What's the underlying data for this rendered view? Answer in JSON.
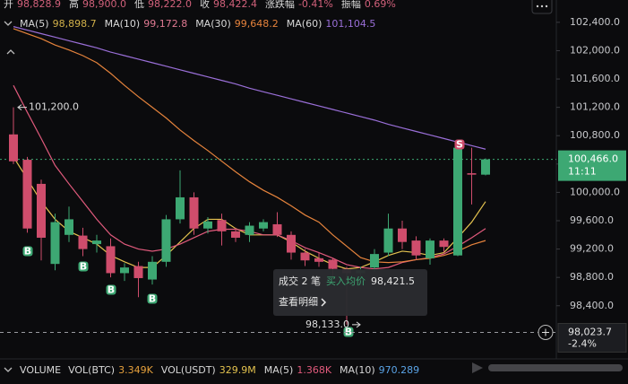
{
  "chart_data": {
    "type": "candlestick",
    "header": [
      {
        "label": "开",
        "value": "98,828.9"
      },
      {
        "label": "高",
        "value": "98,900.0"
      },
      {
        "label": "低",
        "value": "98,222.0"
      },
      {
        "label": "收",
        "value": "98,422.4"
      },
      {
        "label": "涨跌幅",
        "value": "-0.41%"
      },
      {
        "label": "振幅",
        "value": "0.69%"
      }
    ],
    "candles": {
      "up_color": "#3da873",
      "down_color": "#cf4d6c",
      "open": [
        100818,
        100460,
        100120,
        98990,
        99400,
        99390,
        99270,
        99240,
        98860,
        98960,
        98770,
        99020,
        99620,
        99930,
        99490,
        99610,
        99450,
        99400,
        99490,
        99550,
        99400,
        99150,
        99070,
        99050,
        98920,
        98860,
        98940,
        99150,
        99490,
        99320,
        99070,
        99320,
        99110,
        100270,
        100250
      ],
      "high": [
        101200,
        100500,
        100180,
        99700,
        99800,
        99500,
        99400,
        99350,
        99000,
        99020,
        99100,
        99680,
        100310,
        100000,
        99650,
        99700,
        99500,
        99580,
        99620,
        99720,
        99450,
        99200,
        99150,
        99080,
        98950,
        98950,
        99200,
        99700,
        99600,
        99380,
        99350,
        99350,
        100700,
        100630,
        100480
      ],
      "low": [
        100400,
        99430,
        99040,
        98900,
        99300,
        99100,
        99150,
        98800,
        98750,
        98520,
        98700,
        98950,
        99560,
        99400,
        99420,
        99250,
        99300,
        99300,
        99450,
        99370,
        99050,
        98960,
        98950,
        98800,
        98133,
        98800,
        98880,
        99100,
        99200,
        99050,
        98980,
        99150,
        99100,
        99830,
        100240
      ],
      "close": [
        100438,
        99490,
        99360,
        99580,
        99620,
        99200,
        99320,
        98860,
        98940,
        98790,
        99020,
        99620,
        99930,
        99490,
        99590,
        99450,
        99360,
        99530,
        99580,
        99400,
        99150,
        99040,
        99020,
        98920,
        98860,
        98900,
        99130,
        99490,
        99300,
        99110,
        99320,
        99230,
        100630,
        100250,
        100466
      ]
    },
    "series": [
      {
        "name": "MA(5)",
        "value_label": "98,898.7",
        "color": "#e3c24f",
        "label_color": "#d1b04a",
        "values": [
          100500,
          100190,
          99870,
          99620,
          99450,
          99360,
          99270,
          99110,
          99020,
          98940,
          98940,
          99110,
          99300,
          99490,
          99620,
          99620,
          99490,
          99400,
          99400,
          99400,
          99300,
          99170,
          99070,
          98980,
          98920,
          98940,
          99020,
          99110,
          99170,
          99150,
          99110,
          99150,
          99360,
          99580,
          99870
        ]
      },
      {
        "name": "MA(10)",
        "value_label": "99,172.8",
        "color": "#e05a7c",
        "label_color": "#e07a92",
        "values": [
          101510,
          101130,
          100760,
          100380,
          100120,
          99870,
          99620,
          99400,
          99270,
          99200,
          99170,
          99200,
          99270,
          99360,
          99450,
          99480,
          99480,
          99450,
          99400,
          99400,
          99320,
          99220,
          99150,
          99070,
          98980,
          98940,
          98920,
          98940,
          99010,
          99050,
          99080,
          99130,
          99240,
          99360,
          99490
        ]
      },
      {
        "name": "MA(30)",
        "value_label": "99,648.2",
        "color": "#e5833c",
        "label_color": "#e5833c",
        "values": [
          102310,
          102240,
          102170,
          102080,
          102010,
          101930,
          101830,
          101680,
          101510,
          101350,
          101200,
          101050,
          100880,
          100730,
          100590,
          100440,
          100290,
          100150,
          100030,
          99930,
          99810,
          99680,
          99580,
          99400,
          99240,
          99080,
          99020,
          99010,
          99020,
          99050,
          99070,
          99110,
          99170,
          99260,
          99320
        ]
      },
      {
        "name": "MA(60)",
        "value_label": "101,104.5",
        "color": "#9a6fd8",
        "label_color": "#9a6fd8",
        "values": [
          102340,
          102290,
          102240,
          102190,
          102140,
          102090,
          102040,
          101980,
          101930,
          101880,
          101830,
          101780,
          101730,
          101680,
          101630,
          101580,
          101530,
          101470,
          101420,
          101370,
          101320,
          101270,
          101220,
          101170,
          101120,
          101070,
          101020,
          100960,
          100910,
          100860,
          100810,
          100760,
          100710,
          100660,
          100610
        ]
      }
    ],
    "ylim": [
      97650,
      102715
    ],
    "yticks": [
      {
        "value": 98400,
        "label": "98,400.0"
      },
      {
        "value": 98800,
        "label": "98,800.0"
      },
      {
        "value": 99200,
        "label": "99,200.0"
      },
      {
        "value": 99600,
        "label": "99,600.0"
      },
      {
        "value": 100000,
        "label": "100,000.0"
      },
      {
        "value": 100400,
        "label": "100,400.0"
      },
      {
        "value": 100800,
        "label": "100,800.0"
      },
      {
        "value": 101200,
        "label": "101,200.0"
      },
      {
        "value": 101600,
        "label": "101,600.0"
      },
      {
        "value": 102000,
        "label": "102,000.0"
      },
      {
        "value": 102400,
        "label": "102,400.0"
      }
    ],
    "high_label": {
      "value": 101200,
      "label": "101,200.0"
    },
    "low_label": {
      "value": 98133,
      "label": "98,133.0"
    },
    "current_price": {
      "value": 100466,
      "label": "100,466.0",
      "countdown": "11:11"
    },
    "crosshair": {
      "value": 98023.7,
      "label": "98,023.7",
      "change": "-2.4%"
    },
    "markers": {
      "buy": "B",
      "sell": "S"
    },
    "tooltip": {
      "trades": "成交 2 笔",
      "avg_label": "买入均价",
      "avg_value": "98,421.5",
      "link": "查看明细"
    },
    "volume": {
      "title": "VOLUME",
      "items": [
        {
          "label": "VOL(BTC)",
          "value": "3.349K",
          "color": "#e5a03c"
        },
        {
          "label": "VOL(USDT)",
          "value": "329.9M",
          "color": "#e3c24f"
        },
        {
          "label": "MA(5)",
          "value": "1.368K",
          "color": "#e05a7c"
        },
        {
          "label": "MA(10)",
          "value": "970.289",
          "color": "#5aa3e6"
        }
      ]
    }
  }
}
